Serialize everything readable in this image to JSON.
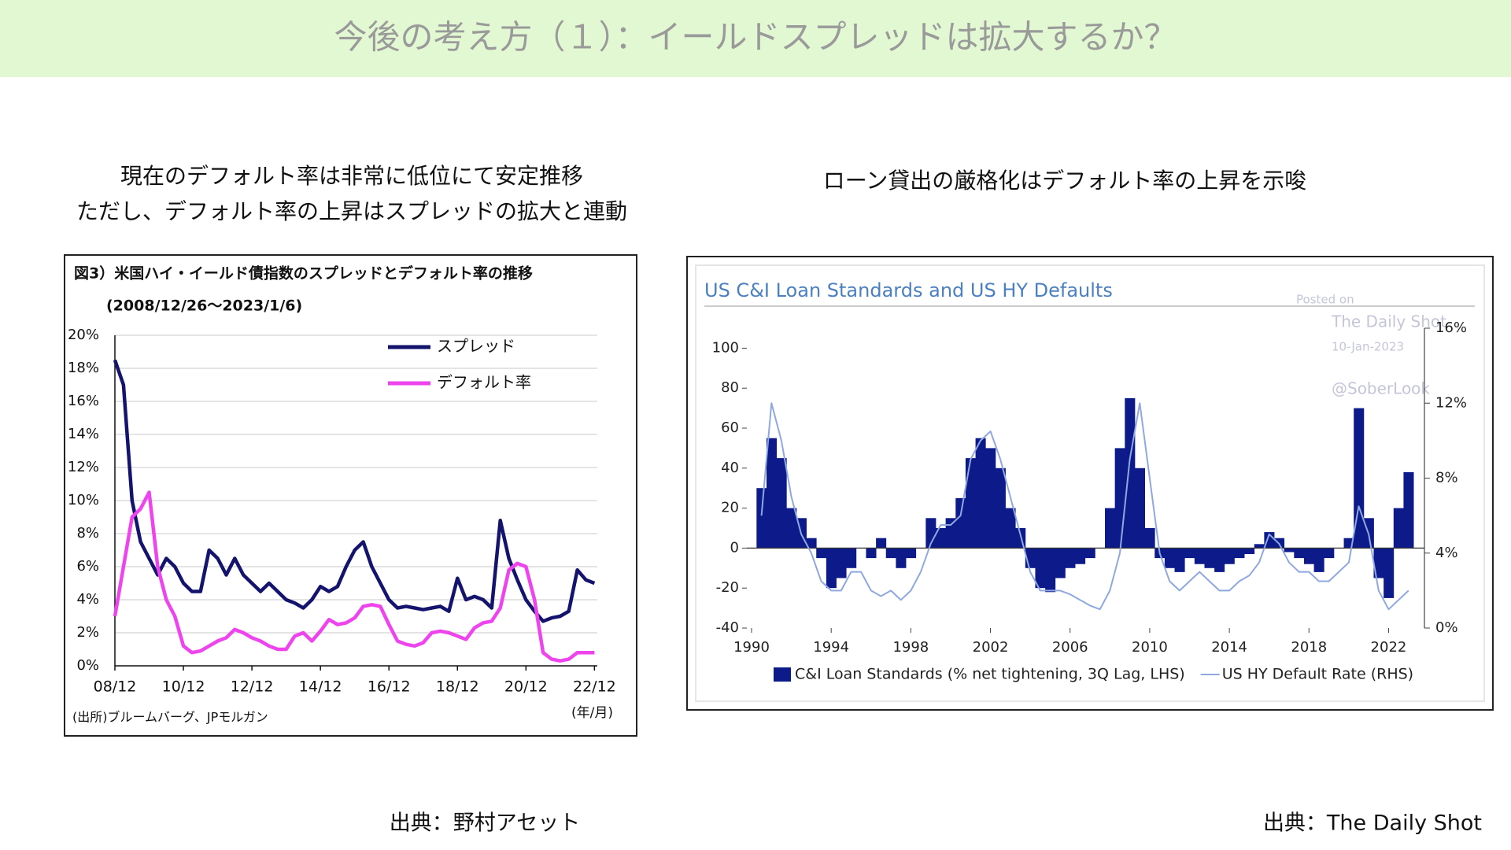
{
  "header": {
    "title": "今後の考え方（１）：イールドスプレッドは拡大するか？"
  },
  "captions": {
    "left": [
      "現在のデフォルト率は非常に低位にて安定推移",
      "ただし、デフォルト率の上昇はスプレッドの拡大と連動"
    ],
    "right": "ローン貸出の厳格化はデフォルト率の上昇を示唆"
  },
  "sources": {
    "left": "出典：野村アセット",
    "right": "出典：The Daily Shot"
  },
  "chart_data": [
    {
      "type": "line",
      "title": "図3）米国ハイ・イールド債指数のスプレッドとデフォルト率の推移",
      "subtitle": "(2008/12/26〜2023/1/6)",
      "note": "(出所)ブルームバーグ、JPモルガン",
      "xlabel": "(年/月)",
      "x": [
        "2008-12",
        "2009-03",
        "2009-06",
        "2009-09",
        "2009-12",
        "2010-03",
        "2010-06",
        "2010-09",
        "2010-12",
        "2011-03",
        "2011-06",
        "2011-09",
        "2011-12",
        "2012-03",
        "2012-06",
        "2012-09",
        "2012-12",
        "2013-03",
        "2013-06",
        "2013-09",
        "2013-12",
        "2014-03",
        "2014-06",
        "2014-09",
        "2014-12",
        "2015-03",
        "2015-06",
        "2015-09",
        "2015-12",
        "2016-03",
        "2016-06",
        "2016-09",
        "2016-12",
        "2017-03",
        "2017-06",
        "2017-09",
        "2017-12",
        "2018-03",
        "2018-06",
        "2018-09",
        "2018-12",
        "2019-03",
        "2019-06",
        "2019-09",
        "2019-12",
        "2020-03",
        "2020-06",
        "2020-09",
        "2020-12",
        "2021-03",
        "2021-06",
        "2021-09",
        "2021-12",
        "2022-03",
        "2022-06",
        "2022-09",
        "2022-12"
      ],
      "series": [
        {
          "name": "スプレッド",
          "color": "#14146e",
          "values": [
            18.5,
            17,
            10,
            7.5,
            6.5,
            5.5,
            6.5,
            6,
            5,
            4.5,
            4.5,
            7,
            6.5,
            5.5,
            6.5,
            5.5,
            5,
            4.5,
            5,
            4.5,
            4,
            3.8,
            3.5,
            4,
            4.8,
            4.5,
            4.8,
            6,
            7,
            7.5,
            6,
            5,
            4,
            3.5,
            3.6,
            3.5,
            3.4,
            3.5,
            3.6,
            3.3,
            5.3,
            4,
            4.2,
            4,
            3.5,
            8.8,
            6.5,
            5.2,
            4,
            3.3,
            2.7,
            2.9,
            3,
            3.3,
            5.8,
            5.2,
            5
          ]
        },
        {
          "name": "デフォルト率",
          "color": "#ee44ee",
          "values": [
            3,
            6,
            9,
            9.5,
            10.5,
            6,
            4,
            3,
            1.2,
            0.8,
            0.9,
            1.2,
            1.5,
            1.7,
            2.2,
            2,
            1.7,
            1.5,
            1.2,
            1,
            1,
            1.8,
            2,
            1.5,
            2.1,
            2.8,
            2.5,
            2.6,
            2.9,
            3.6,
            3.7,
            3.6,
            2.5,
            1.5,
            1.3,
            1.2,
            1.4,
            2,
            2.1,
            2,
            1.8,
            1.6,
            2.3,
            2.6,
            2.7,
            3.5,
            5.8,
            6.2,
            6,
            4,
            0.8,
            0.4,
            0.3,
            0.4,
            0.8,
            0.8,
            0.8
          ]
        }
      ],
      "xlim": [
        "2008-12",
        "2023-01"
      ],
      "xticks": [
        {
          "value": "2008-12",
          "label": "08/12"
        },
        {
          "value": "2010-12",
          "label": "10/12"
        },
        {
          "value": "2012-12",
          "label": "12/12"
        },
        {
          "value": "2014-12",
          "label": "14/12"
        },
        {
          "value": "2016-12",
          "label": "16/12"
        },
        {
          "value": "2018-12",
          "label": "18/12"
        },
        {
          "value": "2020-12",
          "label": "20/12"
        },
        {
          "value": "2022-12",
          "label": "22/12"
        }
      ],
      "ylim": [
        0,
        20
      ],
      "yticks": [
        {
          "value": 0,
          "label": "0%"
        },
        {
          "value": 2,
          "label": "2%"
        },
        {
          "value": 4,
          "label": "4%"
        },
        {
          "value": 6,
          "label": "6%"
        },
        {
          "value": 8,
          "label": "8%"
        },
        {
          "value": 10,
          "label": "10%"
        },
        {
          "value": 12,
          "label": "12%"
        },
        {
          "value": 14,
          "label": "14%"
        },
        {
          "value": 16,
          "label": "16%"
        },
        {
          "value": 18,
          "label": "18%"
        },
        {
          "value": 20,
          "label": "20%"
        }
      ],
      "grid": true
    },
    {
      "type": "combo",
      "title": "US C&I Loan Standards and US HY Defaults",
      "watermark": [
        "Posted on",
        "The Daily Shot",
        "10-Jan-2023",
        "@SoberLook"
      ],
      "x": [
        1990.5,
        1991,
        1991.5,
        1992,
        1992.5,
        1993,
        1993.5,
        1994,
        1994.5,
        1995,
        1995.5,
        1996,
        1996.5,
        1997,
        1997.5,
        1998,
        1998.5,
        1999,
        1999.5,
        2000,
        2000.5,
        2001,
        2001.5,
        2002,
        2002.5,
        2003,
        2003.5,
        2004,
        2004.5,
        2005,
        2005.5,
        2006,
        2006.5,
        2007,
        2007.5,
        2008,
        2008.5,
        2009,
        2009.5,
        2010,
        2010.5,
        2011,
        2011.5,
        2012,
        2012.5,
        2013,
        2013.5,
        2014,
        2014.5,
        2015,
        2015.5,
        2016,
        2016.5,
        2017,
        2017.5,
        2018,
        2018.5,
        2019,
        2019.5,
        2020,
        2020.5,
        2021,
        2021.5,
        2022,
        2022.5,
        2023
      ],
      "series": [
        {
          "name": "C&I Loan Standards (% net tightening, 3Q Lag, LHS)",
          "type": "bar",
          "color": "#0d1a8a",
          "values": [
            30,
            55,
            45,
            20,
            15,
            5,
            -5,
            -20,
            -15,
            -10,
            0,
            -5,
            5,
            -5,
            -10,
            -5,
            0,
            15,
            10,
            15,
            25,
            45,
            55,
            50,
            40,
            20,
            10,
            -10,
            -20,
            -22,
            -15,
            -10,
            -8,
            -5,
            0,
            20,
            50,
            75,
            40,
            10,
            -5,
            -10,
            -12,
            -5,
            -8,
            -10,
            -12,
            -8,
            -5,
            -3,
            2,
            8,
            5,
            -2,
            -5,
            -8,
            -12,
            -5,
            0,
            5,
            70,
            15,
            -15,
            -25,
            20,
            38
          ]
        },
        {
          "name": "US HY Default Rate (RHS)",
          "type": "line",
          "axis": "y2",
          "color": "#8fa8e0",
          "values": [
            6,
            12,
            10,
            7,
            5,
            4,
            2.5,
            2,
            2,
            3,
            3,
            2,
            1.7,
            2,
            1.5,
            2,
            3,
            4.5,
            5.5,
            5.5,
            6,
            9,
            10,
            10.5,
            9,
            7,
            5,
            3,
            2,
            2,
            2,
            1.8,
            1.5,
            1.2,
            1,
            2,
            4,
            9,
            12,
            8,
            4,
            2.5,
            2,
            2.5,
            3,
            2.5,
            2,
            2,
            2.5,
            2.8,
            3.5,
            5,
            4.5,
            3.5,
            3,
            3,
            2.5,
            2.5,
            3,
            3.5,
            6.5,
            5,
            2,
            1,
            1.5,
            2
          ]
        }
      ],
      "bar_width": 0.5,
      "xlim": [
        1990,
        2023.8
      ],
      "xticks": [
        1990,
        1994,
        1998,
        2002,
        2006,
        2010,
        2014,
        2018,
        2022
      ],
      "ylim": [
        -40,
        110
      ],
      "yticks": [
        -40,
        -20,
        0,
        20,
        40,
        60,
        80,
        100
      ],
      "y2lim": [
        0,
        16
      ],
      "y2ticks": [
        {
          "value": 0,
          "label": "0%"
        },
        {
          "value": 4,
          "label": "4%"
        },
        {
          "value": 8,
          "label": "8%"
        },
        {
          "value": 12,
          "label": "12%"
        },
        {
          "value": 16,
          "label": "16%"
        }
      ]
    }
  ]
}
